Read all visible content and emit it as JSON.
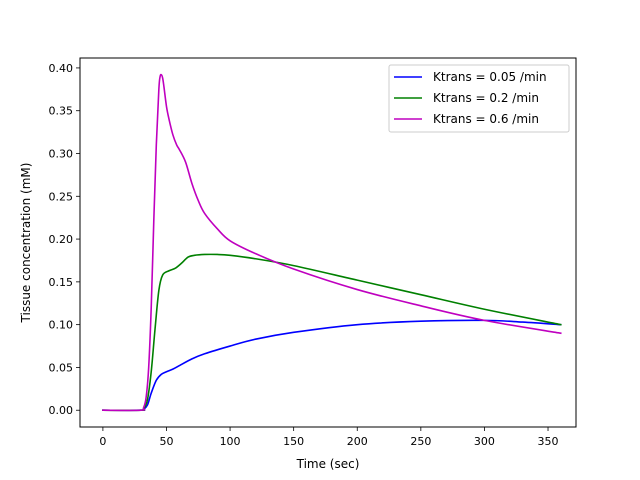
{
  "chart_data": {
    "type": "line",
    "title": "",
    "xlabel": "Time (sec)",
    "ylabel": "Tissue concentration (mM)",
    "xlim": [
      -18,
      372
    ],
    "ylim": [
      -0.0196,
      0.4116
    ],
    "xticks": [
      0,
      50,
      100,
      150,
      200,
      250,
      300,
      350
    ],
    "xtick_labels": [
      "0",
      "50",
      "100",
      "150",
      "200",
      "250",
      "300",
      "350"
    ],
    "yticks": [
      0,
      0.05,
      0.1,
      0.15,
      0.2,
      0.25,
      0.3,
      0.35,
      0.4
    ],
    "ytick_labels": [
      "0.00",
      "0.05",
      "0.10",
      "0.15",
      "0.20",
      "0.25",
      "0.30",
      "0.35",
      "0.40"
    ],
    "grid": false,
    "legend_position": "top-right",
    "series": [
      {
        "name": "Ktrans = 0.05 /min",
        "color": "#0000ff",
        "x": [
          0,
          30,
          32,
          35,
          38,
          42,
          46,
          50,
          55,
          60,
          70,
          80,
          100,
          120,
          150,
          200,
          250,
          300,
          330,
          360
        ],
        "y": [
          0,
          0,
          0.001,
          0.006,
          0.02,
          0.035,
          0.042,
          0.045,
          0.048,
          0.052,
          0.06,
          0.066,
          0.075,
          0.083,
          0.091,
          0.1,
          0.104,
          0.105,
          0.103,
          0.1
        ]
      },
      {
        "name": "Ktrans = 0.2 /min",
        "color": "#008000",
        "x": [
          0,
          30,
          32,
          35,
          38,
          41,
          44,
          47,
          52,
          57,
          62,
          67,
          72,
          80,
          90,
          100,
          120,
          150,
          200,
          250,
          300,
          360
        ],
        "y": [
          0,
          0,
          0.002,
          0.012,
          0.045,
          0.095,
          0.14,
          0.158,
          0.163,
          0.166,
          0.172,
          0.179,
          0.181,
          0.182,
          0.182,
          0.181,
          0.177,
          0.169,
          0.152,
          0.135,
          0.118,
          0.1
        ]
      },
      {
        "name": "Ktrans = 0.6 /min",
        "color": "#bf00bf",
        "x": [
          0,
          30,
          32,
          34,
          36,
          38,
          40,
          42,
          44,
          45,
          46,
          47,
          48,
          50,
          52,
          55,
          58,
          60,
          65,
          70,
          75,
          80,
          90,
          100,
          120,
          150,
          200,
          250,
          300,
          360
        ],
        "y": [
          0,
          0,
          0.003,
          0.015,
          0.05,
          0.12,
          0.22,
          0.31,
          0.375,
          0.39,
          0.392,
          0.388,
          0.378,
          0.355,
          0.34,
          0.322,
          0.31,
          0.305,
          0.29,
          0.265,
          0.245,
          0.23,
          0.212,
          0.198,
          0.183,
          0.165,
          0.141,
          0.122,
          0.105,
          0.09
        ]
      }
    ]
  }
}
